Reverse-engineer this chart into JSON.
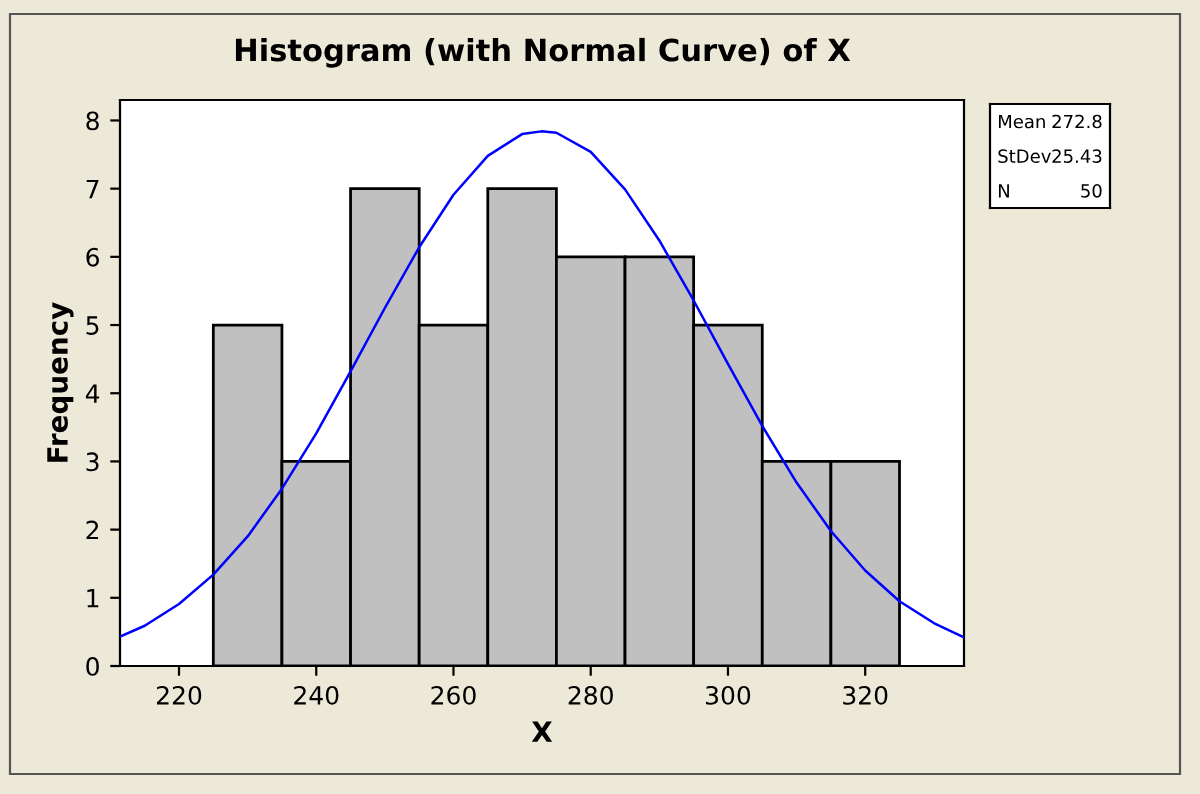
{
  "chart_data": {
    "type": "histogram",
    "title": "Histogram (with Normal Curve) of X",
    "xlabel": "X",
    "ylabel": "Frequency",
    "bins": [
      225,
      235,
      245,
      255,
      265,
      275,
      285,
      295,
      305,
      315,
      325
    ],
    "values": [
      5,
      3,
      7,
      5,
      7,
      6,
      6,
      5,
      3,
      3
    ],
    "color": "#c0c0c0",
    "series": [
      {
        "type": "line",
        "color": "#0000ff",
        "x": [
          211.4,
          215,
          220,
          225,
          230,
          235,
          240,
          245,
          250,
          255,
          260,
          265,
          270,
          272.8,
          275,
          280,
          285,
          290,
          295,
          300,
          305,
          310,
          315,
          320,
          325,
          330,
          334.4
        ],
        "values": [
          0.43,
          0.59,
          0.91,
          1.34,
          1.9,
          2.6,
          3.41,
          4.32,
          5.25,
          6.14,
          6.91,
          7.48,
          7.8,
          7.84,
          7.82,
          7.54,
          6.99,
          6.24,
          5.36,
          4.43,
          3.52,
          2.69,
          1.98,
          1.4,
          0.95,
          0.63,
          0.42
        ]
      }
    ],
    "xlim": [
      211.4,
      334.4
    ],
    "ylim": [
      0,
      8.3
    ],
    "xticks": [
      220,
      240,
      260,
      280,
      300,
      320
    ],
    "yticks": [
      0,
      1,
      2,
      3,
      4,
      5,
      6,
      7,
      8
    ],
    "grid": false,
    "marker": "none",
    "line_style": "solid",
    "annotations": [
      "Mean 272.8",
      "StDev 25.43",
      "N 50"
    ]
  }
}
